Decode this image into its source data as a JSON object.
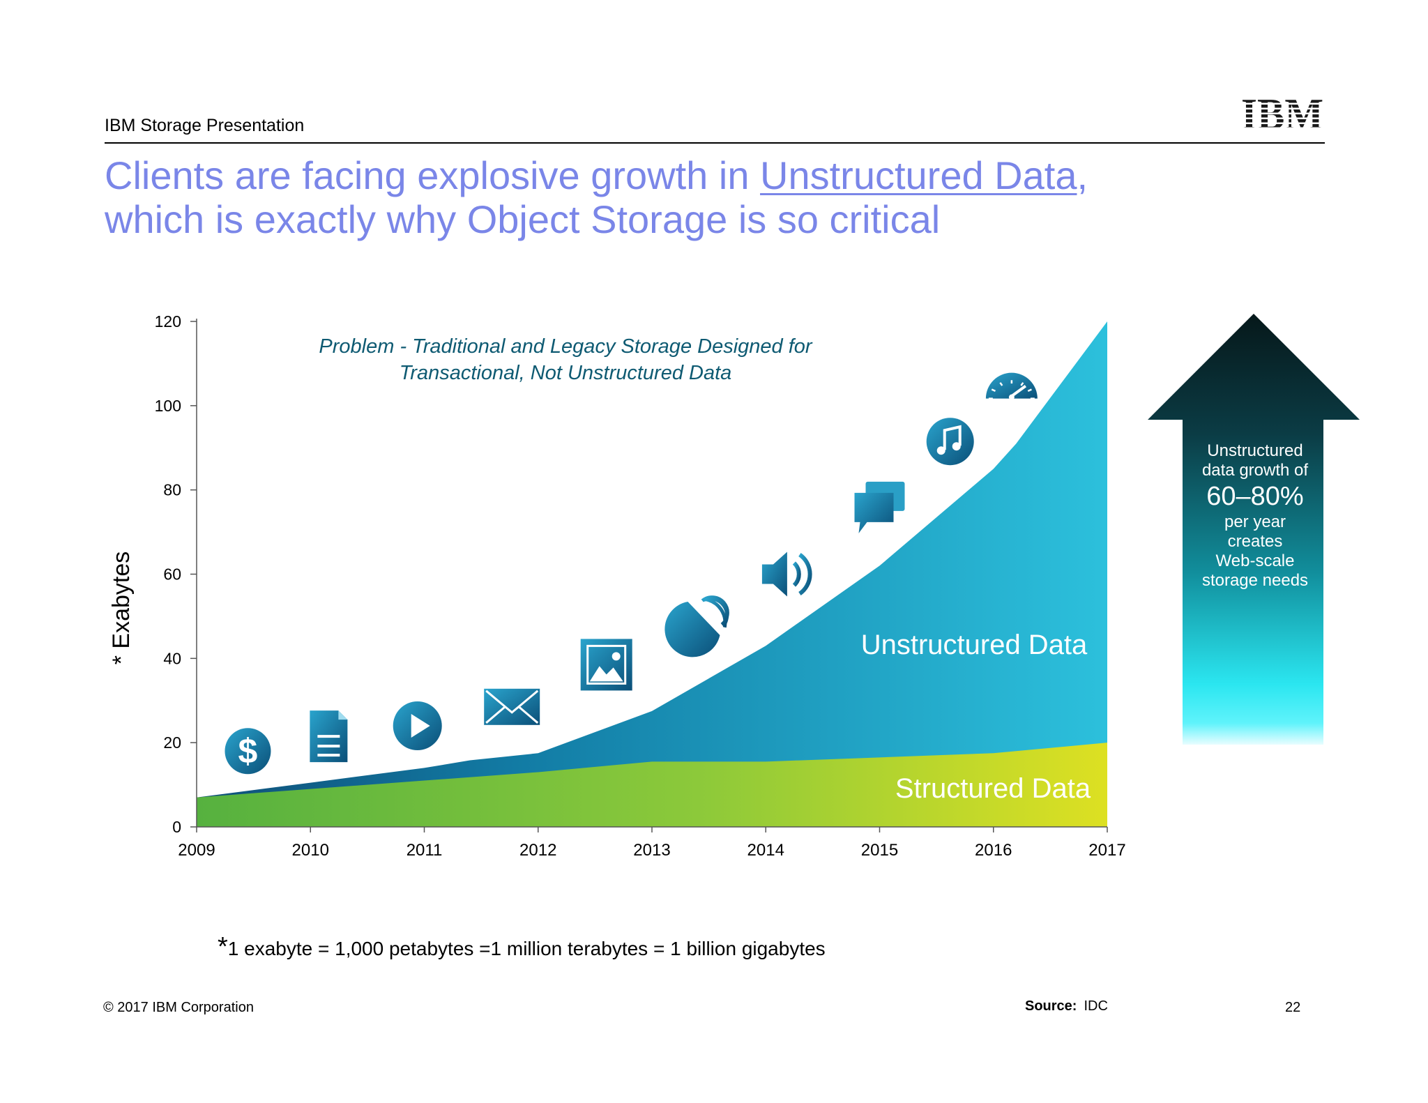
{
  "header": {
    "label": "IBM Storage Presentation",
    "logo": "IBM"
  },
  "title": {
    "line1_pre": "Clients are facing explosive growth in ",
    "line1_link": "Unstructured Data",
    "line1_post": ",",
    "line2": "which is exactly why Object Storage is so critical"
  },
  "chart_data": {
    "type": "area",
    "ylabel": "* Exabytes",
    "ylim": [
      0,
      120
    ],
    "yticks": [
      "0",
      "20",
      "40",
      "60",
      "80",
      "100",
      "120"
    ],
    "x": [
      "2009",
      "2010",
      "2011",
      "2012",
      "2013",
      "2014",
      "2015",
      "2016",
      "2017"
    ],
    "annotation": "Problem - Traditional and Legacy Storage Designed for\nTransactional, Not Unstructured Data",
    "annotation_lines": [
      "Problem - Traditional and Legacy Storage Designed for",
      "Transactional, Not Unstructured Data"
    ],
    "series": [
      {
        "name": "Structured Data",
        "points": [
          [
            2009,
            7
          ],
          [
            2010,
            9
          ],
          [
            2011,
            11
          ],
          [
            2012,
            13
          ],
          [
            2013,
            15.5
          ],
          [
            2014,
            15.5
          ],
          [
            2015,
            16.5
          ],
          [
            2016,
            17.5
          ],
          [
            2017,
            20
          ]
        ]
      },
      {
        "name": "Unstructured Data",
        "points": [
          [
            2009,
            7
          ],
          [
            2010,
            10.5
          ],
          [
            2011,
            14
          ],
          [
            2011.4,
            15.8
          ],
          [
            2012,
            17.5
          ],
          [
            2013,
            27.5
          ],
          [
            2014,
            43
          ],
          [
            2015,
            62
          ],
          [
            2016,
            85
          ],
          [
            2016.2,
            91
          ],
          [
            2017,
            120
          ]
        ]
      }
    ],
    "icons": [
      {
        "name": "dollar-icon",
        "year": 2009.45,
        "value": 18
      },
      {
        "name": "document-icon",
        "year": 2010.16,
        "value": 21.5
      },
      {
        "name": "play-icon",
        "year": 2010.94,
        "value": 24
      },
      {
        "name": "mail-icon",
        "year": 2011.77,
        "value": 28.5
      },
      {
        "name": "image-icon",
        "year": 2012.6,
        "value": 38.5
      },
      {
        "name": "satellite-icon",
        "year": 2013.45,
        "value": 48.5
      },
      {
        "name": "speaker-icon",
        "year": 2014.2,
        "value": 60
      },
      {
        "name": "chat-icon",
        "year": 2015,
        "value": 76
      },
      {
        "name": "music-icon",
        "year": 2015.62,
        "value": 91.5
      },
      {
        "name": "speedometer-icon",
        "year": 2016.16,
        "value": 104
      }
    ]
  },
  "growth": {
    "line1": "Unstructured",
    "line2": "data growth of",
    "percent": "60–80%",
    "line3": "per year",
    "line4": "creates",
    "line5": "Web-scale",
    "line6": "storage needs"
  },
  "footnote": {
    "star": "*",
    "text": "1 exabyte = 1,000 petabytes =1 million terabytes = 1 billion gigabytes"
  },
  "footer": {
    "copyright": "© 2017 IBM Corporation",
    "source_label": "Source:",
    "source_value": "IDC",
    "page": "22"
  },
  "colors": {
    "title": "#7a86e8",
    "annotation": "#0e5a72",
    "unstructured_dark": "#0f5f85",
    "unstructured_light": "#2cc0dc",
    "structured_left": "#5bb33f",
    "structured_right": "#dde022",
    "icon_dark": "#0d5a82",
    "icon_light": "#2aa4cd"
  }
}
